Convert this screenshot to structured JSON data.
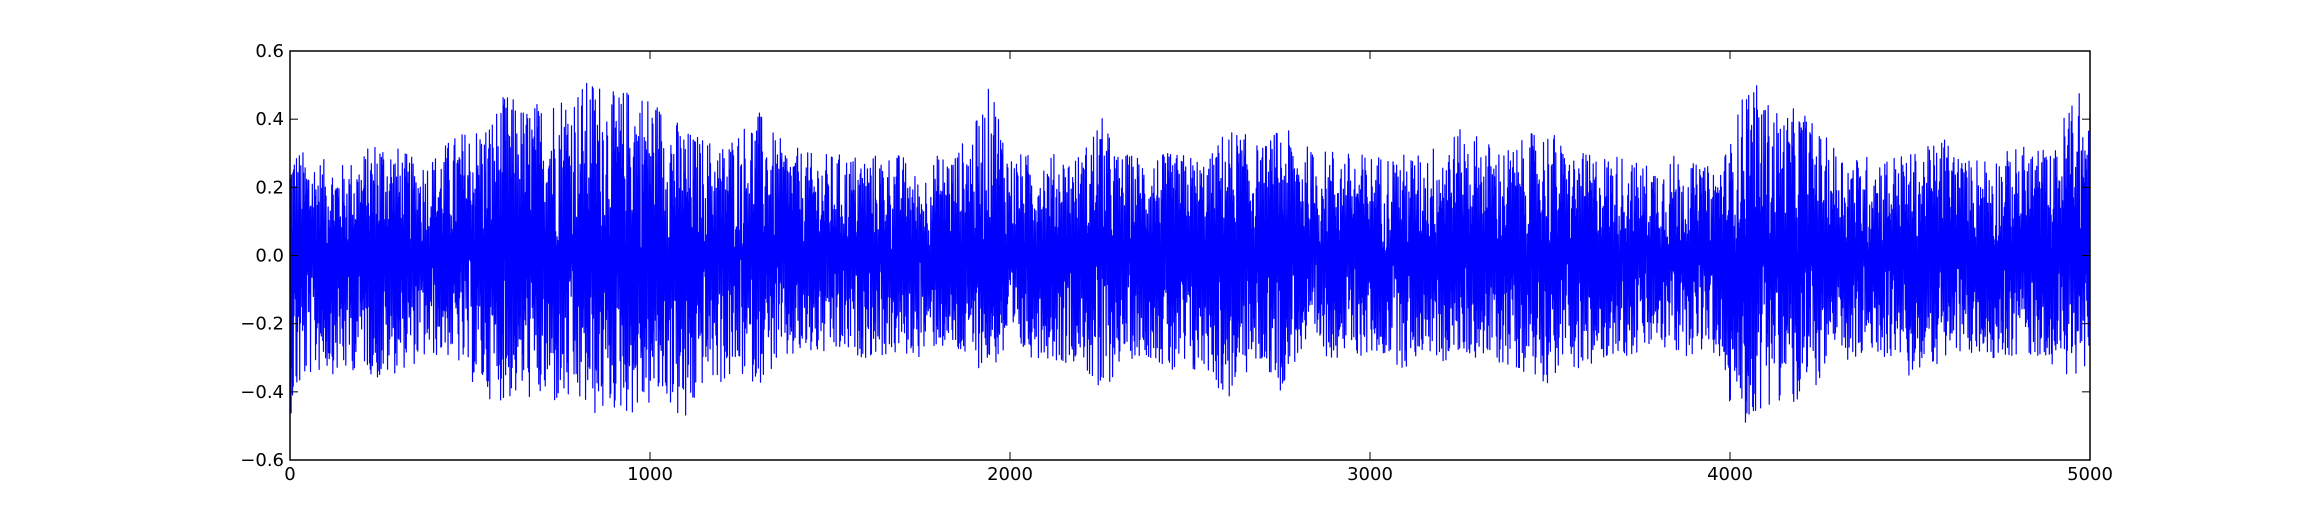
{
  "chart_data": {
    "type": "line",
    "title": "",
    "xlabel": "",
    "ylabel": "",
    "xlim": [
      0,
      5000
    ],
    "ylim": [
      -0.6,
      0.6
    ],
    "x_ticks": [
      0,
      1000,
      2000,
      3000,
      4000,
      5000
    ],
    "x_tick_labels": [
      "0",
      "1000",
      "2000",
      "3000",
      "4000",
      "5000"
    ],
    "y_ticks": [
      0.6,
      0.4,
      0.2,
      0.0,
      -0.2,
      -0.4,
      -0.6
    ],
    "y_tick_labels": [
      "0.6",
      "0.4",
      "0.2",
      "0.0",
      "−0.2",
      "−0.4",
      "−0.6"
    ],
    "grid": false,
    "legend": "none",
    "series": [
      {
        "color": "#0000ff",
        "x": [
          0,
          50,
          100,
          150,
          200,
          250,
          300,
          350,
          400,
          450,
          500,
          550,
          600,
          650,
          700,
          750,
          800,
          850,
          900,
          950,
          1000,
          1050,
          1100,
          1150,
          1200,
          1250,
          1300,
          1350,
          1400,
          1450,
          1500,
          1550,
          1600,
          1650,
          1700,
          1750,
          1800,
          1850,
          1900,
          1950,
          2000,
          2050,
          2100,
          2150,
          2200,
          2250,
          2300,
          2350,
          2400,
          2450,
          2500,
          2550,
          2600,
          2650,
          2700,
          2750,
          2800,
          2850,
          2900,
          2950,
          3000,
          3050,
          3100,
          3150,
          3200,
          3250,
          3300,
          3350,
          3400,
          3450,
          3500,
          3550,
          3600,
          3650,
          3700,
          3750,
          3800,
          3850,
          3900,
          3950,
          4000,
          4050,
          4100,
          4150,
          4200,
          4250,
          4300,
          4350,
          4400,
          4450,
          4500,
          4550,
          4600,
          4650,
          4700,
          4750,
          4800,
          4850,
          4900,
          4950,
          5000
        ],
        "envelope_max": [
          0.33,
          0.3,
          0.28,
          0.27,
          0.3,
          0.36,
          0.32,
          0.28,
          0.3,
          0.35,
          0.38,
          0.4,
          0.48,
          0.44,
          0.46,
          0.49,
          0.5,
          0.53,
          0.48,
          0.5,
          0.48,
          0.43,
          0.37,
          0.35,
          0.33,
          0.38,
          0.43,
          0.35,
          0.32,
          0.3,
          0.3,
          0.3,
          0.3,
          0.3,
          0.3,
          0.22,
          0.3,
          0.31,
          0.38,
          0.52,
          0.3,
          0.3,
          0.3,
          0.3,
          0.3,
          0.42,
          0.3,
          0.3,
          0.3,
          0.3,
          0.3,
          0.28,
          0.38,
          0.36,
          0.32,
          0.38,
          0.35,
          0.3,
          0.32,
          0.3,
          0.3,
          0.3,
          0.3,
          0.3,
          0.35,
          0.37,
          0.36,
          0.32,
          0.32,
          0.36,
          0.38,
          0.3,
          0.3,
          0.3,
          0.3,
          0.27,
          0.28,
          0.3,
          0.27,
          0.26,
          0.33,
          0.54,
          0.46,
          0.42,
          0.44,
          0.36,
          0.32,
          0.29,
          0.3,
          0.3,
          0.3,
          0.32,
          0.36,
          0.28,
          0.3,
          0.3,
          0.32,
          0.33,
          0.3,
          0.51,
          0.44
        ],
        "envelope_min": [
          -0.47,
          -0.36,
          -0.34,
          -0.36,
          -0.32,
          -0.38,
          -0.34,
          -0.32,
          -0.3,
          -0.3,
          -0.37,
          -0.42,
          -0.43,
          -0.42,
          -0.44,
          -0.45,
          -0.45,
          -0.48,
          -0.46,
          -0.47,
          -0.45,
          -0.43,
          -0.53,
          -0.37,
          -0.38,
          -0.36,
          -0.38,
          -0.33,
          -0.31,
          -0.3,
          -0.3,
          -0.3,
          -0.3,
          -0.3,
          -0.3,
          -0.3,
          -0.27,
          -0.3,
          -0.33,
          -0.33,
          -0.3,
          -0.3,
          -0.3,
          -0.32,
          -0.3,
          -0.46,
          -0.32,
          -0.3,
          -0.3,
          -0.37,
          -0.37,
          -0.34,
          -0.44,
          -0.36,
          -0.32,
          -0.4,
          -0.3,
          -0.3,
          -0.3,
          -0.3,
          -0.3,
          -0.3,
          -0.34,
          -0.28,
          -0.32,
          -0.3,
          -0.3,
          -0.32,
          -0.33,
          -0.35,
          -0.38,
          -0.3,
          -0.38,
          -0.3,
          -0.3,
          -0.3,
          -0.27,
          -0.3,
          -0.29,
          -0.28,
          -0.45,
          -0.51,
          -0.44,
          -0.42,
          -0.48,
          -0.36,
          -0.32,
          -0.32,
          -0.3,
          -0.3,
          -0.37,
          -0.33,
          -0.31,
          -0.3,
          -0.3,
          -0.3,
          -0.3,
          -0.3,
          -0.32,
          -0.38,
          -0.3
        ]
      }
    ]
  }
}
